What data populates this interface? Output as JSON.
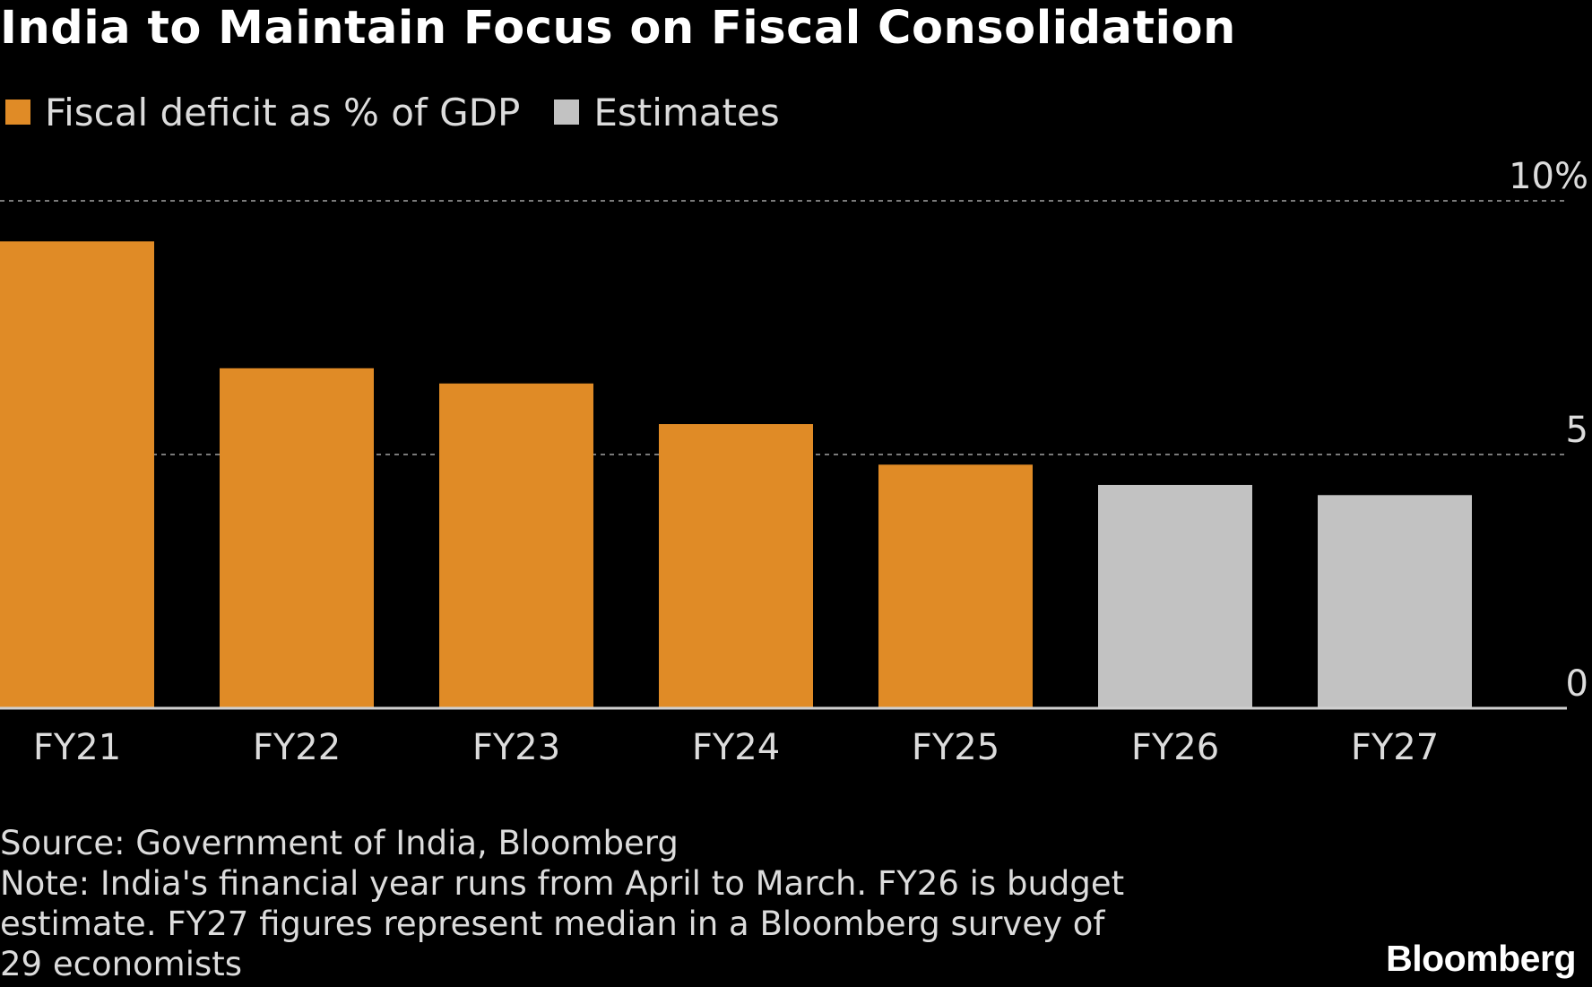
{
  "title": "India to Maintain Focus on Fiscal Consolidation",
  "legend": [
    {
      "label": "Fiscal deficit as % of GDP",
      "color": "#e08b26"
    },
    {
      "label": "Estimates",
      "color": "#c2c2c2"
    }
  ],
  "chart_data": {
    "type": "bar",
    "title": "India to Maintain Focus on Fiscal Consolidation",
    "categories": [
      "FY21",
      "FY22",
      "FY23",
      "FY24",
      "FY25",
      "FY26",
      "FY27"
    ],
    "values": [
      9.2,
      6.7,
      6.4,
      5.6,
      4.8,
      4.4,
      4.2
    ],
    "series_type": [
      "actual",
      "actual",
      "actual",
      "actual",
      "actual",
      "estimate",
      "estimate"
    ],
    "ylim": [
      0,
      10
    ],
    "yticks": [
      {
        "value": 0,
        "label": "0"
      },
      {
        "value": 5,
        "label": "5"
      },
      {
        "value": 10,
        "label": "10%"
      }
    ],
    "grid": true,
    "legend_position": "top-left",
    "colors": {
      "actual": "#e08b26",
      "estimate": "#c2c2c2"
    }
  },
  "footer": {
    "source": "Source: Government of India, Bloomberg",
    "note_lines": [
      "Note: India's financial year runs from April to March. FY26 is budget",
      "estimate. FY27 figures represent median in a Bloomberg survey of",
      "29 economists"
    ]
  },
  "brand": "Bloomberg"
}
